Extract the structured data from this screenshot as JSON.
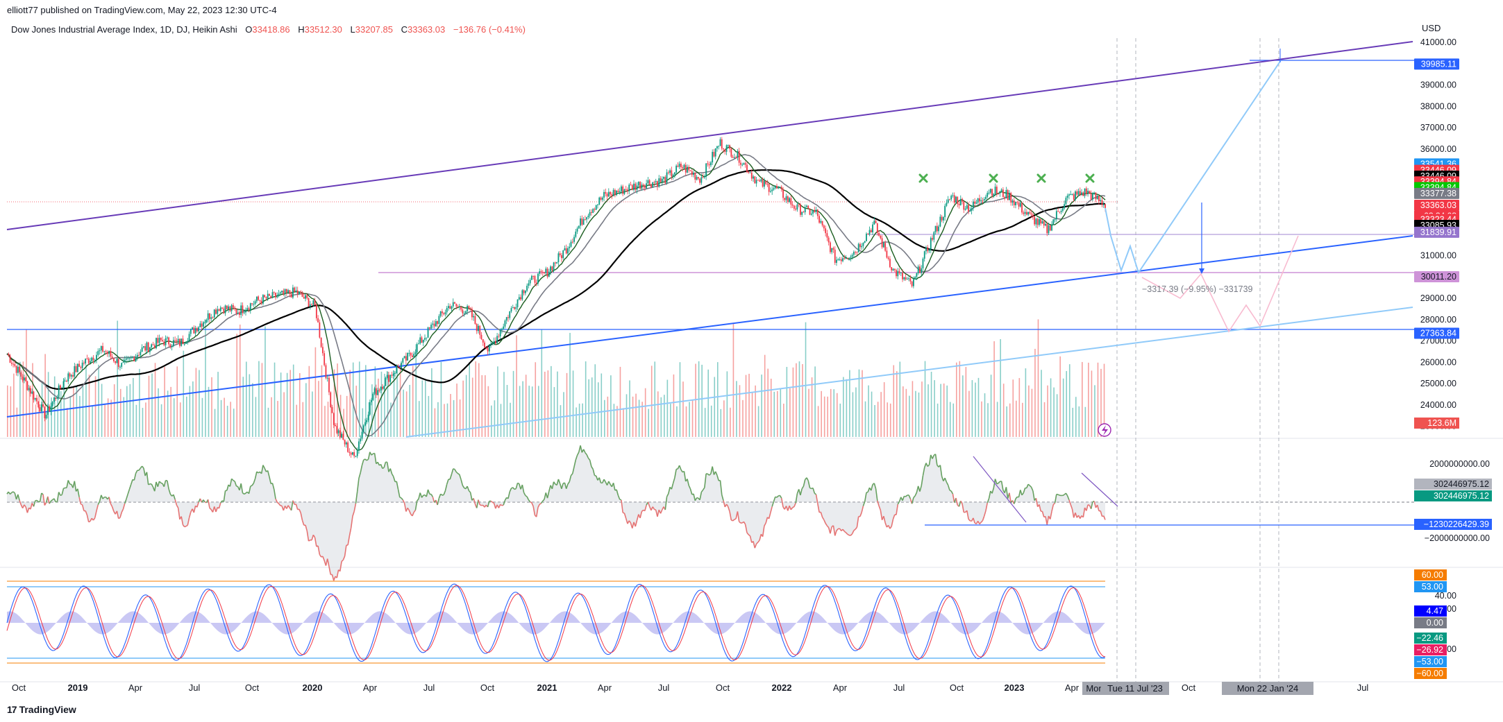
{
  "header": {
    "publisher": "elliott77 published on TradingView.com, May 22, 2023 12:30 UTC-4",
    "symbol": "Dow Jones Industrial Average Index, 1D, DJ, Heikin Ashi",
    "o_label": "O",
    "o_value": "33418.86",
    "h_label": "H",
    "h_value": "33512.30",
    "l_label": "L",
    "l_value": "33207.85",
    "c_label": "C",
    "c_value": "33363.03",
    "change": "−136.76 (−0.41%)",
    "currency": "USD"
  },
  "footer": {
    "brand": "TradingView"
  },
  "chart_data": {
    "type": "candlestick",
    "price_axis": {
      "ticks": [
        "41000.00",
        "40000.00",
        "39000.00",
        "38000.00",
        "37000.00",
        "36000.00",
        "35000.00",
        "34000.00",
        "33000.00",
        "32000.00",
        "31000.00",
        "30000.00",
        "29000.00",
        "28000.00",
        "27000.00",
        "26000.00",
        "25000.00",
        "24000.00",
        "23000.00"
      ],
      "range": [
        22500,
        41200
      ],
      "labels": [
        {
          "value": 39985.11,
          "text": "39985.11",
          "color": "#2962ff"
        },
        {
          "value": 35300,
          "text": "33541.36",
          "color": "#2196f3"
        },
        {
          "value": 35000,
          "text": "33446.09",
          "color": "#f23645"
        },
        {
          "value": 34730,
          "text": "33446.09",
          "color": "#000000"
        },
        {
          "value": 34460,
          "text": "33394.84",
          "color": "#f23645"
        },
        {
          "value": 34190,
          "text": "33394.84",
          "color": "#00c800"
        },
        {
          "value": 33920,
          "text": "33377.38",
          "color": "#787b86"
        },
        {
          "value": 33363.03,
          "text": "33363.03",
          "color": "#f23645",
          "extra": "03:34:03"
        },
        {
          "value": 32700,
          "text": "33323.44",
          "color": "#f23645"
        },
        {
          "value": 32420,
          "text": "33085.93",
          "color": "#000000"
        },
        {
          "value": 32100,
          "text": "31839.91",
          "color": "#9575cd"
        },
        {
          "value": 30011.2,
          "text": "30011.20",
          "color": "#ce93d8",
          "textColor": "#131722"
        },
        {
          "value": 27363.84,
          "text": "27363.84",
          "color": "#2962ff"
        }
      ],
      "volume_label": {
        "text": "123.6M",
        "color": "#ef5350"
      }
    },
    "time_axis": {
      "ticks": [
        "Oct",
        "2019",
        "Apr",
        "Jul",
        "Oct",
        "2020",
        "Apr",
        "Jul",
        "Oct",
        "2021",
        "Apr",
        "Jul",
        "Oct",
        "2022",
        "Apr",
        "Jul",
        "Oct",
        "2023",
        "Apr",
        "Oct",
        "24",
        "Jul"
      ],
      "highlighted": [
        "Mon",
        "Tue 11 Jul '23",
        "Mon 22 Jan '24"
      ]
    },
    "measure_annotation": "−3317.39 (−9.95%) −331739",
    "price_series": {
      "start": "2018-09",
      "end": "2023-05-22",
      "approx_close": [
        26400,
        25000,
        23500,
        25200,
        26000,
        26600,
        25800,
        26600,
        27000,
        26900,
        27800,
        28600,
        28400,
        28900,
        29100,
        29300,
        28600,
        23000,
        21500,
        24500,
        25500,
        26400,
        27600,
        28700,
        28400,
        26500,
        28200,
        29700,
        30200,
        31300,
        32900,
        33800,
        34100,
        34400,
        34500,
        35200,
        34600,
        36300,
        35600,
        34400,
        34100,
        33200,
        33000,
        30800,
        31200,
        32500,
        30300,
        29600,
        31800,
        33800,
        33200,
        34100,
        33800,
        32900,
        32200,
        33700,
        34000,
        33400
      ]
    },
    "macd_panel": {
      "labels": [
        {
          "text": "302446975.12",
          "color": "#b2b5be",
          "textColor": "#131722"
        },
        {
          "text": "302446975.12",
          "color": "#089981"
        },
        {
          "text": "−1230226429.39",
          "color": "#2962ff"
        }
      ],
      "ticks": [
        "2000000000.00",
        "−2000000000.00"
      ]
    },
    "stoch_panel": {
      "labels": [
        {
          "text": "60.00",
          "color": "#f57c00"
        },
        {
          "text": "53.00",
          "color": "#2196f3"
        },
        {
          "text": "4.47",
          "color": "#0000ff"
        },
        {
          "text": "0.00",
          "color": "#787b86"
        },
        {
          "text": "−22.46",
          "color": "#089981"
        },
        {
          "text": "−26.92",
          "color": "#e91e63"
        },
        {
          "text": "−53.00",
          "color": "#2196f3"
        },
        {
          "text": "−60.00",
          "color": "#f57c00"
        }
      ],
      "ticks": [
        "40.00",
        "20.00",
        "−40.00"
      ]
    }
  }
}
